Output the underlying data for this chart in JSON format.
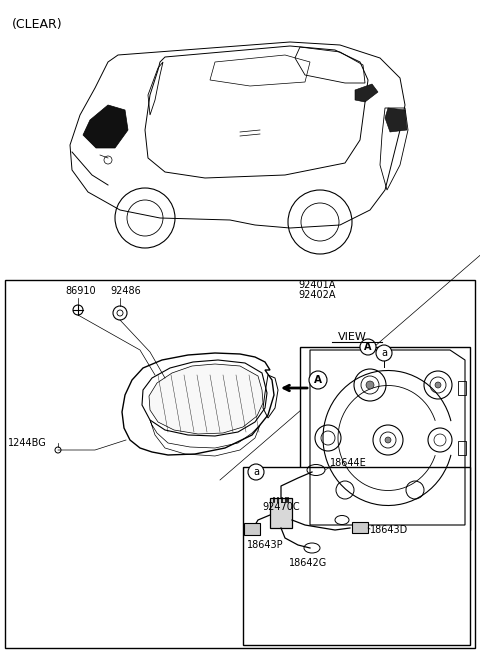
{
  "bg_color": "#ffffff",
  "labels": {
    "clear": "(CLEAR)",
    "86910": "86910",
    "92486": "92486",
    "92401A": "92401A",
    "92402A": "92402A",
    "1244BG": "1244BG",
    "view_a": "VIEW",
    "A": "A",
    "a": "a",
    "18644E": "18644E",
    "92470C": "92470C",
    "18643P": "18643P",
    "18642G": "18642G",
    "18643D": "18643D"
  }
}
